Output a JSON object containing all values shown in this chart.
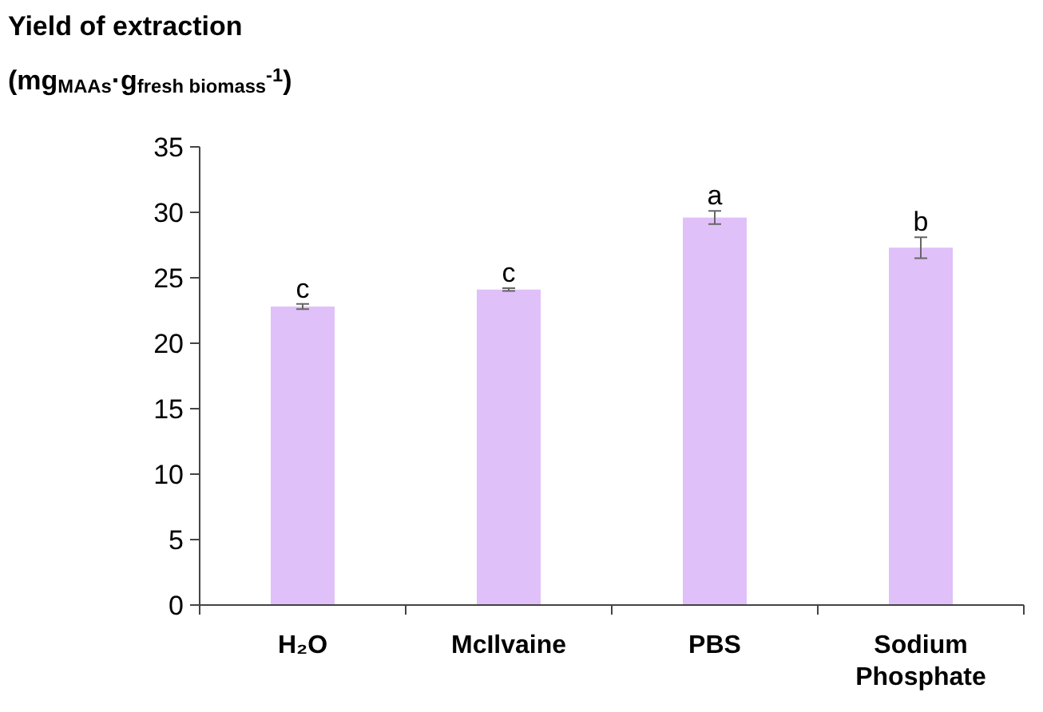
{
  "chart_data": {
    "type": "bar",
    "title": "Yield of extraction",
    "ylabel": "(mg$_{MAAs}$·g$_{fresh biomass}$$^{-1}$)",
    "categories": [
      "H₂O",
      "McIlvaine",
      "PBS",
      "Sodium Phosphate"
    ],
    "values": [
      22.8,
      24.1,
      29.6,
      27.3
    ],
    "errors": [
      0.2,
      0.1,
      0.5,
      0.8
    ],
    "color": "#e0c0f8",
    "ylim": [
      0,
      35
    ],
    "yticks": [
      0,
      5,
      10,
      15,
      20,
      25,
      30,
      35
    ],
    "grid": false,
    "annotations": [
      {
        "text": "c",
        "x": "H₂O",
        "y": 23.0
      },
      {
        "text": "c",
        "x": "McIlvaine",
        "y": 24.2
      },
      {
        "text": "a",
        "x": "PBS",
        "y": 30.1
      },
      {
        "text": "b",
        "x": "Sodium Phosphate",
        "y": 28.1
      }
    ]
  }
}
